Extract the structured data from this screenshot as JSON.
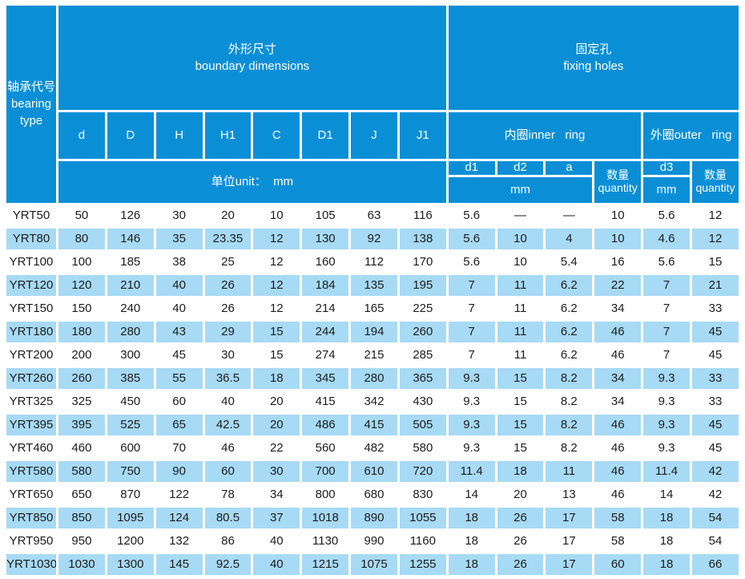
{
  "colors": {
    "header_blue": "#0a8fd7",
    "row_highlight_blue": "#a7daf4",
    "row_plain": "#ffffff",
    "header_text": "#ffffff",
    "body_text": "#1c1c1c"
  },
  "table": {
    "header": {
      "bearing_type": "轴承代号\nbearing\ntype",
      "boundary_dimensions": "外形尺寸\nboundary dimensions",
      "fixing_holes": "固定孔\nfixing holes",
      "dim_columns": [
        "d",
        "D",
        "H",
        "H1",
        "C",
        "D1",
        "J",
        "J1"
      ],
      "unit": "单位unit：  mm",
      "inner_ring": "内圈inner   ring",
      "outer_ring": "外圈outer   ring",
      "inner_sub_columns": [
        "d1",
        "d2",
        "a"
      ],
      "inner_mm": "mm",
      "inner_quantity": "数量\nquantity",
      "outer_d3": "d3",
      "outer_mm": "mm",
      "outer_quantity": "数量\nquantity"
    },
    "rows": [
      [
        "YRT50",
        "50",
        "126",
        "30",
        "20",
        "10",
        "105",
        "63",
        "116",
        "5.6",
        "—",
        "—",
        "10",
        "5.6",
        "12"
      ],
      [
        "YRT80",
        "80",
        "146",
        "35",
        "23.35",
        "12",
        "130",
        "92",
        "138",
        "5.6",
        "10",
        "4",
        "10",
        "4.6",
        "12"
      ],
      [
        "YRT100",
        "100",
        "185",
        "38",
        "25",
        "12",
        "160",
        "112",
        "170",
        "5.6",
        "10",
        "5.4",
        "16",
        "5.6",
        "15"
      ],
      [
        "YRT120",
        "120",
        "210",
        "40",
        "26",
        "12",
        "184",
        "135",
        "195",
        "7",
        "11",
        "6.2",
        "22",
        "7",
        "21"
      ],
      [
        "YRT150",
        "150",
        "240",
        "40",
        "26",
        "12",
        "214",
        "165",
        "225",
        "7",
        "11",
        "6.2",
        "34",
        "7",
        "33"
      ],
      [
        "YRT180",
        "180",
        "280",
        "43",
        "29",
        "15",
        "244",
        "194",
        "260",
        "7",
        "11",
        "6.2",
        "46",
        "7",
        "45"
      ],
      [
        "YRT200",
        "200",
        "300",
        "45",
        "30",
        "15",
        "274",
        "215",
        "285",
        "7",
        "11",
        "6.2",
        "46",
        "7",
        "45"
      ],
      [
        "YRT260",
        "260",
        "385",
        "55",
        "36.5",
        "18",
        "345",
        "280",
        "365",
        "9.3",
        "15",
        "8.2",
        "34",
        "9.3",
        "33"
      ],
      [
        "YRT325",
        "325",
        "450",
        "60",
        "40",
        "20",
        "415",
        "342",
        "430",
        "9.3",
        "15",
        "8.2",
        "34",
        "9.3",
        "33"
      ],
      [
        "YRT395",
        "395",
        "525",
        "65",
        "42.5",
        "20",
        "486",
        "415",
        "505",
        "9.3",
        "15",
        "8.2",
        "46",
        "9.3",
        "45"
      ],
      [
        "YRT460",
        "460",
        "600",
        "70",
        "46",
        "22",
        "560",
        "482",
        "580",
        "9.3",
        "15",
        "8.2",
        "46",
        "9.3",
        "45"
      ],
      [
        "YRT580",
        "580",
        "750",
        "90",
        "60",
        "30",
        "700",
        "610",
        "720",
        "11.4",
        "18",
        "11",
        "46",
        "11.4",
        "42"
      ],
      [
        "YRT650",
        "650",
        "870",
        "122",
        "78",
        "34",
        "800",
        "680",
        "830",
        "14",
        "20",
        "13",
        "46",
        "14",
        "42"
      ],
      [
        "YRT850",
        "850",
        "1095",
        "124",
        "80.5",
        "37",
        "1018",
        "890",
        "1055",
        "18",
        "26",
        "17",
        "58",
        "18",
        "54"
      ],
      [
        "YRT950",
        "950",
        "1200",
        "132",
        "86",
        "40",
        "1130",
        "990",
        "1160",
        "18",
        "26",
        "17",
        "58",
        "18",
        "54"
      ],
      [
        "YRT1030",
        "1030",
        "1300",
        "145",
        "92.5",
        "40",
        "1215",
        "1075",
        "1255",
        "18",
        "26",
        "17",
        "60",
        "18",
        "66"
      ]
    ]
  }
}
